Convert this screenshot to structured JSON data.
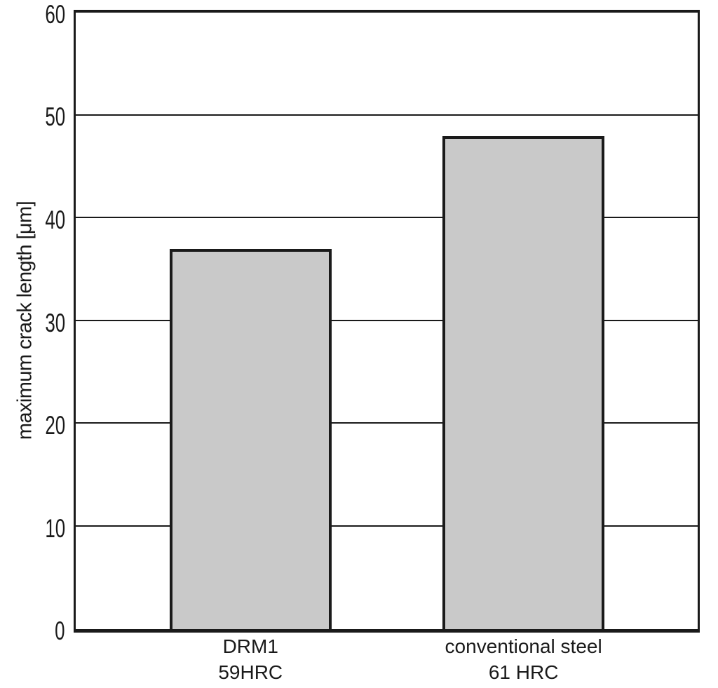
{
  "chart_data": {
    "type": "bar",
    "title": "",
    "xlabel": "",
    "ylabel": "maximum crack length [μm]",
    "ylim": [
      0,
      60
    ],
    "yticks": [
      0,
      10,
      20,
      30,
      40,
      50,
      60
    ],
    "categories": [
      "DRM1 59HRC",
      "conventional steel 61 HRC"
    ],
    "category_lines": [
      [
        "DRM1",
        "59HRC"
      ],
      [
        "conventional steel",
        "61 HRC"
      ]
    ],
    "series": [
      {
        "name": "maximum crack length",
        "values": [
          37,
          48
        ]
      }
    ],
    "grid": "horizontal",
    "legend_position": "none",
    "colors": {
      "bar_fill": "#c9c9c9",
      "line": "#1a1a1a",
      "background": "#ffffff"
    }
  }
}
